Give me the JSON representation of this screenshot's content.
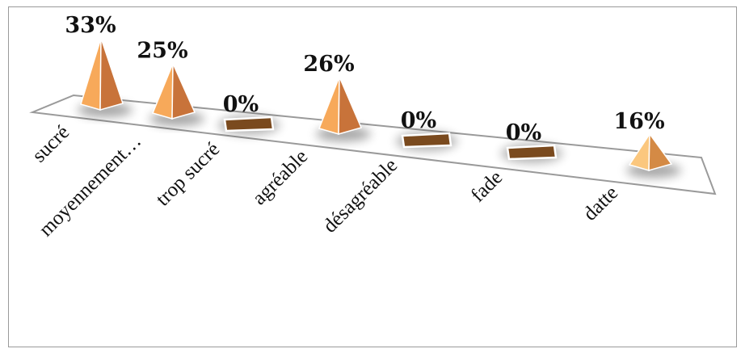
{
  "chart_data": {
    "type": "bar",
    "bar_shape": "pyramid",
    "categories": [
      "sucré",
      "moyennement…",
      "trop sucré",
      "agréable",
      "désagréable",
      "fade",
      "datte"
    ],
    "values": [
      33,
      25,
      0,
      26,
      0,
      0,
      16
    ],
    "data_labels": [
      "33%",
      "25%",
      "0%",
      "26%",
      "0%",
      "0%",
      "16%"
    ],
    "title": "",
    "xlabel": "",
    "ylabel": "",
    "ylim": [
      0,
      33
    ],
    "grid": false,
    "legend": "none",
    "colors": {
      "pyramid_light": "#f7a95a",
      "pyramid_dark": "#c8733a",
      "pyramid_light_last": "#fbc77e",
      "pyramid_dark_last": "#d48a45",
      "zero_marker": "#7a4a1e",
      "floor_edge": "#9a9a9a"
    }
  }
}
